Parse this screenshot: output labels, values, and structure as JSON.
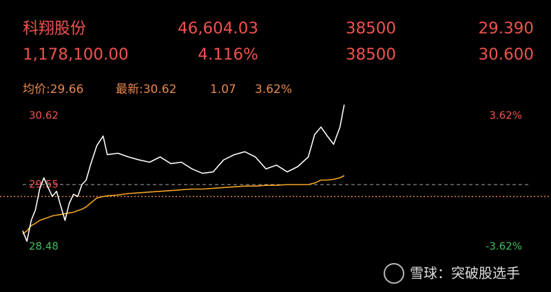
{
  "header": {
    "rows": [
      [
        "科翔股份",
        "46,604.03",
        "38500",
        "29.390"
      ],
      [
        "1,178,100.00",
        "4.116%",
        "38500",
        "30.600"
      ]
    ],
    "summary": [
      "均价:29.66",
      "最新:30.62",
      "1.07",
      "3.62%"
    ]
  },
  "chart_data": {
    "type": "line",
    "x": [
      0,
      2,
      4,
      6,
      8,
      10,
      12,
      14,
      16,
      18,
      20,
      22,
      24,
      26,
      28,
      30,
      32,
      35,
      38,
      40,
      45,
      50,
      55,
      60,
      65,
      70,
      75,
      80,
      85,
      90,
      95,
      100,
      105,
      110,
      115,
      120,
      125,
      130,
      135,
      138,
      141,
      144,
      147,
      150,
      152
    ],
    "xlim": [
      0,
      240
    ],
    "ylim": [
      28.48,
      30.62
    ],
    "yticks": [
      30.62,
      29.55,
      28.48
    ],
    "y2lim": [
      -3.62,
      3.62
    ],
    "y2ticks": [
      {
        "value": 3.62,
        "label": "3.62%"
      },
      {
        "value": -3.62,
        "label": "-3.62%"
      }
    ],
    "reference_line": 29.39,
    "series": [
      {
        "color": "#ffffff",
        "values": [
          28.93,
          28.79,
          29.07,
          29.21,
          29.49,
          29.64,
          29.51,
          29.39,
          29.46,
          29.26,
          29.07,
          29.3,
          29.42,
          29.39,
          29.55,
          29.61,
          29.81,
          30.07,
          30.2,
          29.95,
          29.97,
          29.92,
          29.88,
          29.85,
          29.92,
          29.83,
          29.85,
          29.76,
          29.7,
          29.72,
          29.88,
          29.95,
          29.99,
          29.92,
          29.76,
          29.81,
          29.72,
          29.79,
          29.92,
          30.22,
          30.32,
          30.2,
          30.09,
          30.32,
          30.62
        ]
      },
      {
        "color": "#f5a623",
        "values": [
          28.89,
          28.93,
          29.0,
          29.03,
          29.07,
          29.09,
          29.11,
          29.13,
          29.14,
          29.15,
          29.16,
          29.17,
          29.18,
          29.2,
          29.22,
          29.25,
          29.3,
          29.37,
          29.39,
          29.4,
          29.41,
          29.43,
          29.44,
          29.45,
          29.46,
          29.47,
          29.48,
          29.49,
          29.49,
          29.5,
          29.51,
          29.52,
          29.53,
          29.53,
          29.54,
          29.54,
          29.55,
          29.55,
          29.55,
          29.57,
          29.61,
          29.61,
          29.62,
          29.64,
          29.67
        ]
      }
    ]
  },
  "watermark": "雪球：突破股选手"
}
